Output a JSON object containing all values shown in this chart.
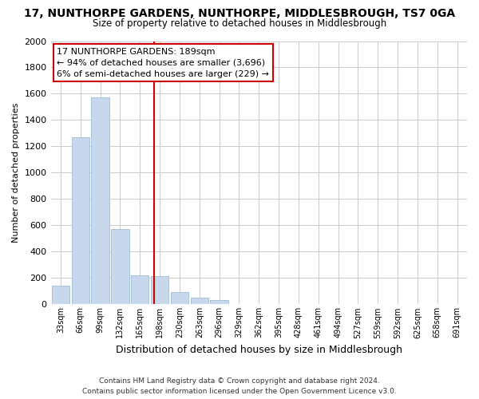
{
  "title": "17, NUNTHORPE GARDENS, NUNTHORPE, MIDDLESBROUGH, TS7 0GA",
  "subtitle": "Size of property relative to detached houses in Middlesbrough",
  "xlabel": "Distribution of detached houses by size in Middlesbrough",
  "ylabel": "Number of detached properties",
  "bin_labels": [
    "33sqm",
    "66sqm",
    "99sqm",
    "132sqm",
    "165sqm",
    "198sqm",
    "230sqm",
    "263sqm",
    "296sqm",
    "329sqm",
    "362sqm",
    "395sqm",
    "428sqm",
    "461sqm",
    "494sqm",
    "527sqm",
    "559sqm",
    "592sqm",
    "625sqm",
    "658sqm",
    "691sqm"
  ],
  "bar_values": [
    140,
    1270,
    1570,
    570,
    220,
    215,
    95,
    50,
    30,
    5,
    0,
    0,
    0,
    0,
    0,
    0,
    0,
    0,
    0,
    0,
    0
  ],
  "bar_color": "#c8d8ec",
  "bar_edge_color": "#a0bcd8",
  "vline_color": "#cc0000",
  "annotation_text": "17 NUNTHORPE GARDENS: 189sqm\n← 94% of detached houses are smaller (3,696)\n6% of semi-detached houses are larger (229) →",
  "annotation_box_edge": "#cc0000",
  "annotation_box_face": "#ffffff",
  "ylim": [
    0,
    2000
  ],
  "yticks": [
    0,
    200,
    400,
    600,
    800,
    1000,
    1200,
    1400,
    1600,
    1800,
    2000
  ],
  "grid_color": "#cccccc",
  "background_color": "#ffffff",
  "plot_bg_color": "#ffffff",
  "footer_line1": "Contains HM Land Registry data © Crown copyright and database right 2024.",
  "footer_line2": "Contains public sector information licensed under the Open Government Licence v3.0."
}
